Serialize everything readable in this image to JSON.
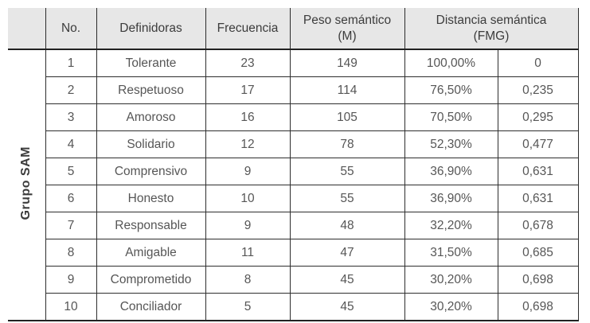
{
  "group_label": "Grupo SAM",
  "header": {
    "no": "No.",
    "definidoras": "Definidoras",
    "frecuencia": "Frecuencia",
    "peso_line1": "Peso semántico",
    "peso_line2": "(M)",
    "distancia_line1": "Distancia semántica",
    "distancia_line2": "(FMG)"
  },
  "colors": {
    "header_bg": "#e7e7e7",
    "grid_line": "#2e2e2e",
    "thick_line": "#222222",
    "header_text": "#3c3c3c",
    "body_text": "#565656"
  },
  "rows": [
    {
      "no": "1",
      "definidora": "Tolerante",
      "frecuencia": "23",
      "peso": "149",
      "pct": "100,00%",
      "fmg": "0"
    },
    {
      "no": "2",
      "definidora": "Respetuoso",
      "frecuencia": "17",
      "peso": "114",
      "pct": "76,50%",
      "fmg": "0,235"
    },
    {
      "no": "3",
      "definidora": "Amoroso",
      "frecuencia": "16",
      "peso": "105",
      "pct": "70,50%",
      "fmg": "0,295"
    },
    {
      "no": "4",
      "definidora": "Solidario",
      "frecuencia": "12",
      "peso": "78",
      "pct": "52,30%",
      "fmg": "0,477"
    },
    {
      "no": "5",
      "definidora": "Comprensivo",
      "frecuencia": "9",
      "peso": "55",
      "pct": "36,90%",
      "fmg": "0,631"
    },
    {
      "no": "6",
      "definidora": "Honesto",
      "frecuencia": "10",
      "peso": "55",
      "pct": "36,90%",
      "fmg": "0,631"
    },
    {
      "no": "7",
      "definidora": "Responsable",
      "frecuencia": "9",
      "peso": "48",
      "pct": "32,20%",
      "fmg": "0,678"
    },
    {
      "no": "8",
      "definidora": "Amigable",
      "frecuencia": "11",
      "peso": "47",
      "pct": "31,50%",
      "fmg": "0,685"
    },
    {
      "no": "9",
      "definidora": "Comprometido",
      "frecuencia": "8",
      "peso": "45",
      "pct": "30,20%",
      "fmg": "0,698"
    },
    {
      "no": "10",
      "definidora": "Conciliador",
      "frecuencia": "5",
      "peso": "45",
      "pct": "30,20%",
      "fmg": "0,698"
    }
  ]
}
